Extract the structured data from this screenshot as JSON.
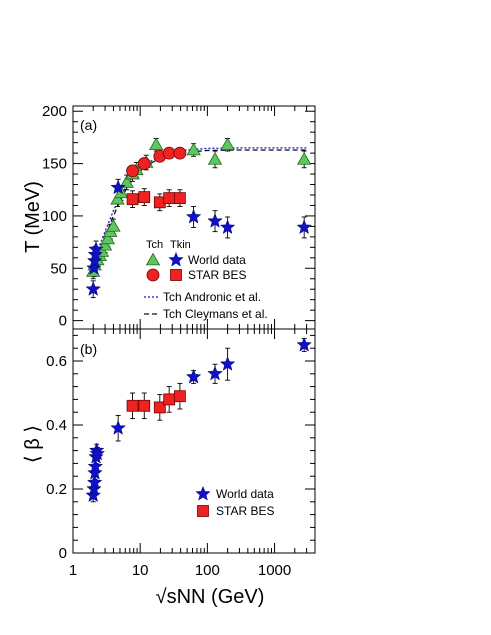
{
  "chart_data": [
    {
      "type": "scatter",
      "panel_label": "(a)",
      "ylabel": "T (MeV)",
      "xlabel": "√sNN (GeV)",
      "x_scale": "log",
      "xlim": [
        1,
        4000
      ],
      "ylim": [
        -8,
        205
      ],
      "x_ticks": [
        "1",
        "10",
        "100",
        "1000"
      ],
      "y_ticks": [
        0,
        50,
        100,
        150,
        200
      ],
      "legend": {
        "column_headers": [
          "Tch",
          "Tkin"
        ],
        "entries": [
          "World data",
          "STAR BES"
        ],
        "curves": [
          "Tch Andronic et al.",
          "Tch Cleymans et al."
        ]
      },
      "series": [
        {
          "name": "Tch World data",
          "marker": "triangle",
          "color": "#5fc65f",
          "points": [
            [
              2.0,
              47,
              7
            ],
            [
              2.1,
              53,
              7
            ],
            [
              2.3,
              58,
              7
            ],
            [
              2.5,
              62,
              7
            ],
            [
              2.7,
              66,
              7
            ],
            [
              3.0,
              72,
              7
            ],
            [
              3.3,
              78,
              7
            ],
            [
              3.6,
              85,
              7
            ],
            [
              4.0,
              90,
              7
            ],
            [
              4.6,
              116,
              7
            ],
            [
              5.2,
              122,
              7
            ],
            [
              6.3,
              132,
              7
            ],
            [
              7.7,
              140,
              7
            ],
            [
              8.8,
              144,
              7
            ],
            [
              12.3,
              151,
              7
            ],
            [
              17.3,
              168,
              6
            ],
            [
              62.4,
              163,
              6
            ],
            [
              130,
              154,
              8
            ],
            [
              200,
              168,
              6
            ],
            [
              2760,
              154,
              8
            ]
          ]
        },
        {
          "name": "Tkin World data",
          "marker": "star",
          "color": "#1010c8",
          "points": [
            [
              2.0,
              30,
              8
            ],
            [
              2.05,
              50,
              8
            ],
            [
              2.1,
              57,
              8
            ],
            [
              2.15,
              63,
              8
            ],
            [
              2.2,
              68,
              8
            ],
            [
              4.7,
              127,
              8
            ],
            [
              62.4,
              99,
              10
            ],
            [
              130,
              95,
              10
            ],
            [
              200,
              89,
              10
            ],
            [
              2760,
              89,
              10
            ]
          ]
        },
        {
          "name": "Tch STAR BES",
          "marker": "circle",
          "color": "#ee2222",
          "points": [
            [
              7.7,
              143,
              4
            ],
            [
              11.5,
              150,
              4
            ],
            [
              19.6,
              157,
              4
            ],
            [
              27,
              160,
              4
            ],
            [
              39,
              160,
              4
            ]
          ]
        },
        {
          "name": "Tkin STAR BES",
          "marker": "square",
          "color": "#ee2222",
          "points": [
            [
              7.7,
              116,
              8
            ],
            [
              11.5,
              118,
              8
            ],
            [
              19.6,
              113,
              8
            ],
            [
              27,
              117,
              8
            ],
            [
              39,
              117,
              8
            ]
          ]
        }
      ],
      "curves": [
        {
          "name": "Tch Andronic et al.",
          "style": "dotted",
          "color": "#1515d0",
          "points": [
            [
              2,
              58
            ],
            [
              2.5,
              72
            ],
            [
              3,
              85
            ],
            [
              4,
              105
            ],
            [
              5,
              118
            ],
            [
              6,
              127
            ],
            [
              7.7,
              137
            ],
            [
              10,
              145
            ],
            [
              15,
              153
            ],
            [
              20,
              157
            ],
            [
              30,
              161
            ],
            [
              50,
              163
            ],
            [
              100,
              164.5
            ],
            [
              300,
              165
            ],
            [
              3000,
              165
            ]
          ]
        },
        {
          "name": "Tch Cleymans et al.",
          "style": "dashed",
          "color": "#111111",
          "points": [
            [
              2,
              52
            ],
            [
              2.5,
              67
            ],
            [
              3,
              80
            ],
            [
              4,
              100
            ],
            [
              5,
              114
            ],
            [
              6,
              124
            ],
            [
              7.7,
              135
            ],
            [
              10,
              143
            ],
            [
              15,
              151
            ],
            [
              20,
              155
            ],
            [
              30,
              159
            ],
            [
              50,
              161
            ],
            [
              100,
              162.5
            ],
            [
              300,
              163
            ],
            [
              3000,
              163
            ]
          ]
        }
      ]
    },
    {
      "type": "scatter",
      "panel_label": "(b)",
      "ylabel": "⟨ β ⟩",
      "xlabel": "√sNN (GeV)",
      "x_scale": "log",
      "xlim": [
        1,
        4000
      ],
      "ylim": [
        0,
        0.7
      ],
      "x_ticks": [
        "1",
        "10",
        "100",
        "1000"
      ],
      "y_ticks": [
        "0",
        "0.2",
        "0.4",
        "0.6"
      ],
      "legend": {
        "entries": [
          "World data",
          "STAR BES"
        ]
      },
      "series": [
        {
          "name": "World data",
          "marker": "star",
          "color": "#1010c8",
          "points": [
            [
              2.0,
              0.18,
              0.02
            ],
            [
              2.05,
              0.2,
              0.02
            ],
            [
              2.1,
              0.22,
              0.02
            ],
            [
              2.12,
              0.25,
              0.02
            ],
            [
              2.15,
              0.27,
              0.02
            ],
            [
              2.2,
              0.3,
              0.02
            ],
            [
              2.25,
              0.32,
              0.02
            ],
            [
              2.3,
              0.31,
              0.02
            ],
            [
              4.7,
              0.39,
              0.04
            ],
            [
              62.4,
              0.55,
              0.02
            ],
            [
              130,
              0.56,
              0.03
            ],
            [
              200,
              0.59,
              0.05
            ],
            [
              2760,
              0.65,
              0.02
            ]
          ]
        },
        {
          "name": "STAR BES",
          "marker": "square",
          "color": "#ee2222",
          "points": [
            [
              7.7,
              0.46,
              0.04
            ],
            [
              11.5,
              0.46,
              0.04
            ],
            [
              19.6,
              0.455,
              0.04
            ],
            [
              27,
              0.48,
              0.04
            ],
            [
              39,
              0.49,
              0.04
            ]
          ]
        }
      ]
    }
  ]
}
